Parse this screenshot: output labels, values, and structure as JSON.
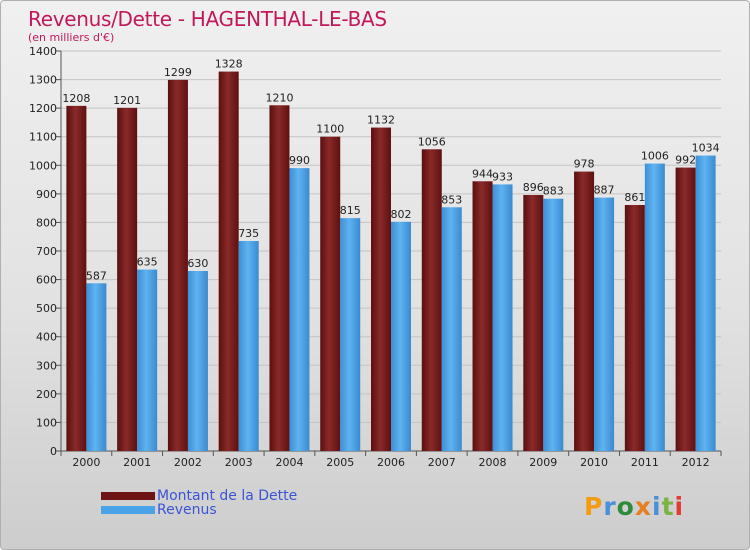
{
  "colors": {
    "debt": "#6e1414",
    "revenue": "#4aa3e6",
    "title": "#c2185b",
    "legend_text": "#3a54d6"
  },
  "chart_data": {
    "type": "bar",
    "title": "Revenus/Dette - HAGENTHAL-LE-BAS",
    "subtitle": "(en milliers d'€)",
    "categories": [
      "2000",
      "2001",
      "2002",
      "2003",
      "2004",
      "2005",
      "2006",
      "2007",
      "2008",
      "2009",
      "2010",
      "2011",
      "2012"
    ],
    "series": [
      {
        "name": "Montant de la Dette",
        "values": [
          1208,
          1201,
          1299,
          1328,
          1210,
          1100,
          1132,
          1056,
          944,
          896,
          978,
          861,
          992
        ]
      },
      {
        "name": "Revenus",
        "values": [
          587,
          635,
          630,
          735,
          990,
          815,
          802,
          853,
          933,
          883,
          887,
          1006,
          1034
        ]
      }
    ],
    "ylim": [
      0,
      1400
    ],
    "yticks": [
      0,
      100,
      200,
      300,
      400,
      500,
      600,
      700,
      800,
      900,
      1000,
      1100,
      1200,
      1300,
      1400
    ],
    "grid": true,
    "legend": "bottom-left"
  },
  "logo": {
    "text": "Proxiti"
  }
}
